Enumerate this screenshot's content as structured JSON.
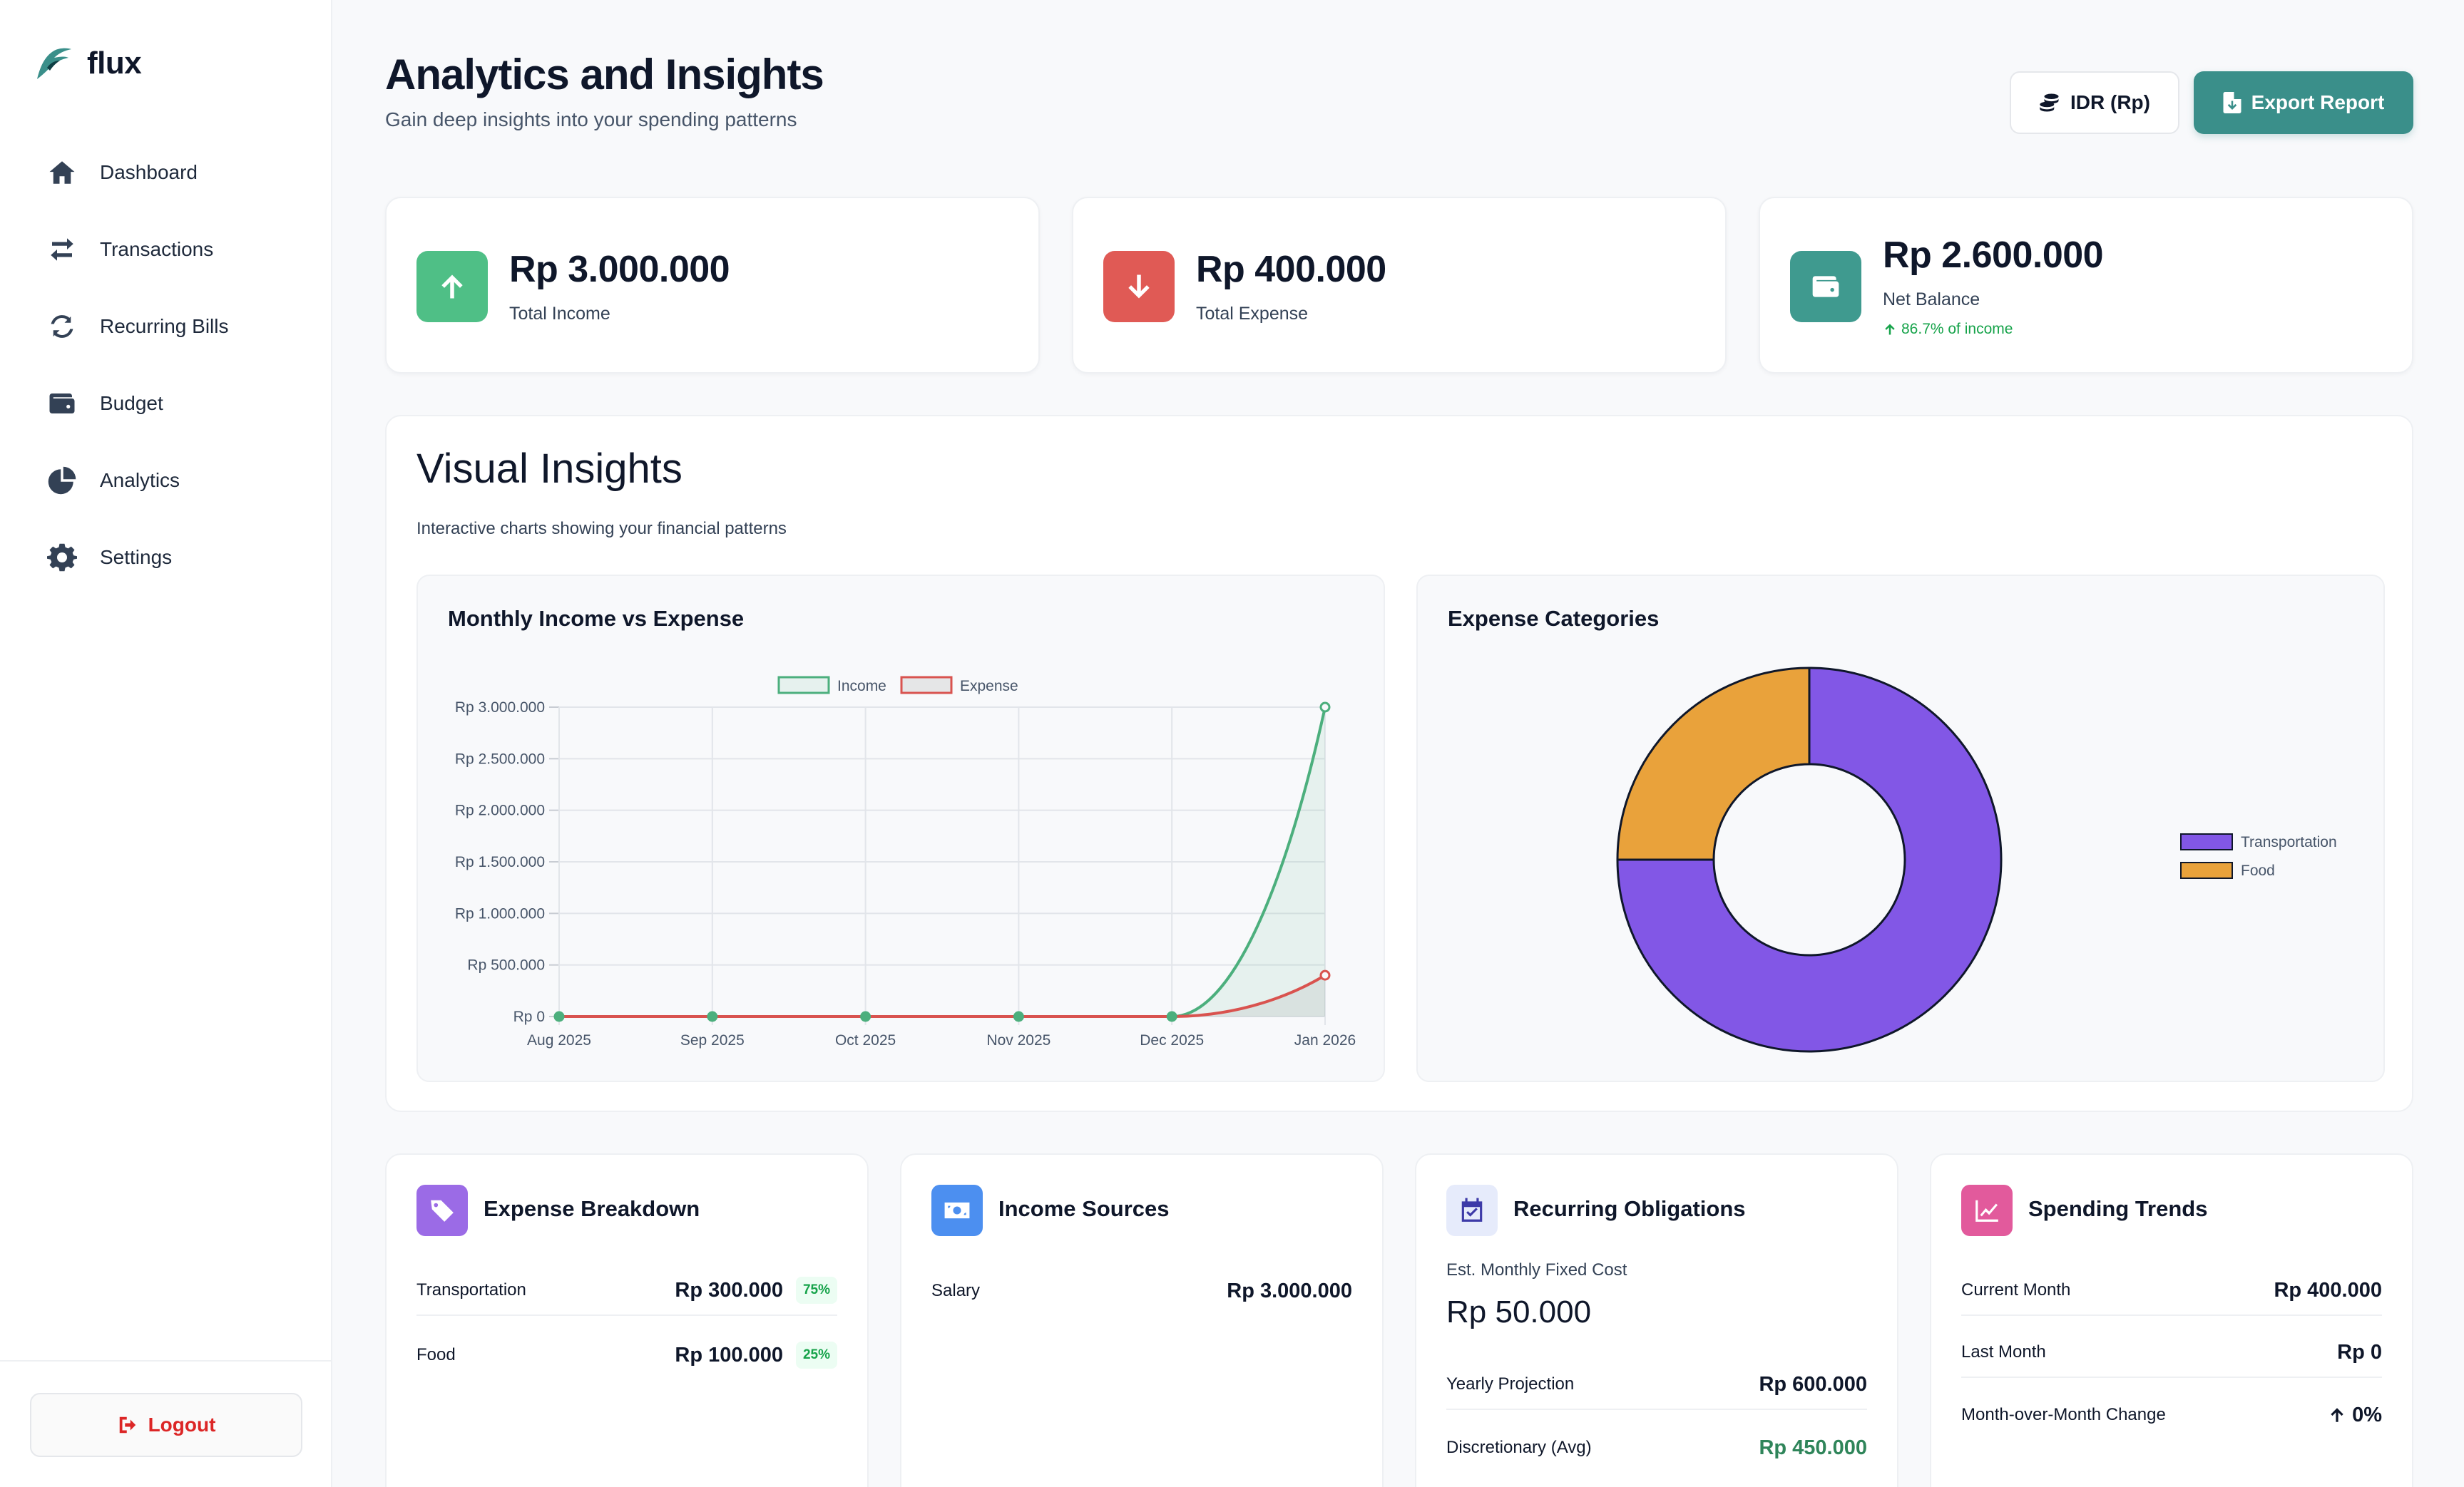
{
  "app": {
    "name": "flux"
  },
  "sidebar": {
    "items": [
      {
        "label": "Dashboard",
        "icon": "home-icon"
      },
      {
        "label": "Transactions",
        "icon": "transfer-icon"
      },
      {
        "label": "Recurring Bills",
        "icon": "refresh-icon"
      },
      {
        "label": "Budget",
        "icon": "wallet-icon"
      },
      {
        "label": "Analytics",
        "icon": "pie-chart-icon"
      },
      {
        "label": "Settings",
        "icon": "gear-icon"
      }
    ],
    "logout_label": "Logout"
  },
  "header": {
    "title": "Analytics and Insights",
    "subtitle": "Gain deep insights into your spending patterns",
    "currency_label": "IDR (Rp)",
    "export_label": "Export Report"
  },
  "stats": {
    "income": {
      "value": "Rp 3.000.000",
      "label": "Total Income",
      "color": "#4fbf86"
    },
    "expense": {
      "value": "Rp 400.000",
      "label": "Total Expense",
      "color": "#e05a55"
    },
    "balance": {
      "value": "Rp 2.600.000",
      "label": "Net Balance",
      "note": "86.7% of income",
      "color": "#3f9a8f"
    }
  },
  "visual": {
    "title": "Visual Insights",
    "subtitle": "Interactive charts showing your financial patterns"
  },
  "chart_data": [
    {
      "type": "line",
      "title": "Monthly Income vs Expense",
      "x": [
        "Aug 2025",
        "Sep 2025",
        "Oct 2025",
        "Nov 2025",
        "Dec 2025",
        "Jan 2026"
      ],
      "y_ticks": [
        "Rp 0",
        "Rp 500.000",
        "Rp 1.000.000",
        "Rp 1.500.000",
        "Rp 2.000.000",
        "Rp 2.500.000",
        "Rp 3.000.000"
      ],
      "ylim": [
        0,
        3000000
      ],
      "grid": true,
      "legend_position": "top",
      "series": [
        {
          "name": "Income",
          "values": [
            0,
            0,
            0,
            0,
            0,
            3000000
          ],
          "color": "#4caf7d",
          "fill": "rgba(76,175,125,0.10)"
        },
        {
          "name": "Expense",
          "values": [
            0,
            0,
            0,
            0,
            0,
            400000
          ],
          "color": "#d9534f",
          "fill": "rgba(120,120,120,0.12)"
        }
      ]
    },
    {
      "type": "pie",
      "title": "Expense Categories",
      "donut": true,
      "legend_position": "right",
      "slices": [
        {
          "name": "Transportation",
          "value": 300000,
          "color": "#8257e6"
        },
        {
          "name": "Food",
          "value": 100000,
          "color": "#e9a23b"
        }
      ]
    }
  ],
  "cards": {
    "expense_breakdown": {
      "title": "Expense Breakdown",
      "rows": [
        {
          "label": "Transportation",
          "value": "Rp 300.000",
          "pct": "75%"
        },
        {
          "label": "Food",
          "value": "Rp 100.000",
          "pct": "25%"
        }
      ]
    },
    "income_sources": {
      "title": "Income Sources",
      "rows": [
        {
          "label": "Salary",
          "value": "Rp 3.000.000"
        }
      ]
    },
    "recurring": {
      "title": "Recurring Obligations",
      "est_label": "Est. Monthly Fixed Cost",
      "est_value": "Rp 50.000",
      "rows": [
        {
          "label": "Yearly Projection",
          "value": "Rp 600.000"
        },
        {
          "label": "Discretionary (Avg)",
          "value": "Rp 450.000",
          "color": "#2f855a"
        }
      ]
    },
    "trends": {
      "title": "Spending Trends",
      "rows": [
        {
          "label": "Current Month",
          "value": "Rp 400.000"
        },
        {
          "label": "Last Month",
          "value": "Rp 0"
        },
        {
          "label": "Month-over-Month Change",
          "value": "0%"
        }
      ]
    }
  }
}
